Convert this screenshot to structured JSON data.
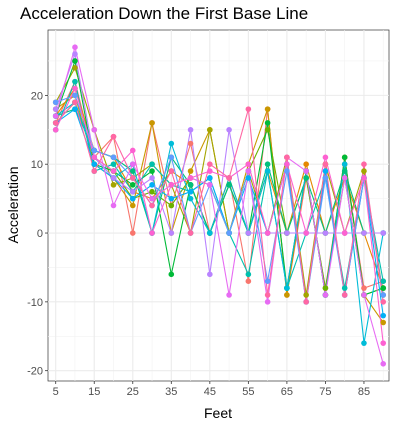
{
  "chart_data": {
    "type": "line",
    "title": "Acceleration Down the First Base Line",
    "xlabel": "Feet",
    "ylabel": "Acceleration",
    "xlim": [
      3,
      91.5
    ],
    "ylim": [
      -21.5,
      29.5
    ],
    "x_ticks": [
      5,
      15,
      25,
      35,
      45,
      55,
      65,
      75,
      85
    ],
    "y_ticks": [
      -20,
      -10,
      0,
      10,
      20
    ],
    "grid": true,
    "legend": "none",
    "colors": [
      "#F8766D",
      "#E58700",
      "#C99800",
      "#A3A500",
      "#6BB100",
      "#00BA38",
      "#00BF7D",
      "#00C0AF",
      "#00BCD8",
      "#00B0F6",
      "#619CFF",
      "#B983FF",
      "#E76BF3",
      "#FD61D1",
      "#FF67A4"
    ],
    "x": [
      5,
      10,
      15,
      20,
      25,
      30,
      35,
      40,
      45,
      50,
      55,
      60,
      65,
      70,
      75,
      80,
      85,
      90
    ],
    "series": [
      {
        "values": [
          16,
          22,
          11,
          14,
          0,
          16,
          4,
          13,
          0,
          8,
          -7,
          18,
          -9,
          8,
          -8,
          10,
          -8,
          -7
        ]
      },
      {
        "values": [
          17,
          21,
          12,
          11,
          6,
          5,
          9,
          7,
          0,
          8,
          0,
          9,
          0,
          10,
          0,
          8,
          0,
          -8
        ]
      },
      {
        "values": [
          18,
          20,
          10,
          8,
          4,
          16,
          0,
          9,
          15,
          0,
          10,
          18,
          -9,
          9,
          -9,
          11,
          -9,
          -13
        ]
      },
      {
        "values": [
          19,
          24,
          15,
          7,
          8,
          10,
          7,
          0,
          15,
          0,
          9,
          0,
          11,
          -9,
          10,
          0,
          9,
          -9
        ]
      },
      {
        "values": [
          16,
          19,
          11,
          9,
          5,
          6,
          4,
          8,
          7,
          0,
          9,
          15,
          0,
          8,
          -8,
          8,
          -9,
          -8
        ]
      },
      {
        "values": [
          17,
          25,
          10,
          9,
          7,
          9,
          -6,
          7,
          0,
          7,
          0,
          16,
          -8,
          9,
          -9,
          11,
          -9,
          -8
        ]
      },
      {
        "values": [
          17,
          18,
          12,
          11,
          9,
          0,
          11,
          7,
          0,
          7,
          0,
          10,
          0,
          8,
          0,
          9,
          0,
          0
        ]
      },
      {
        "values": [
          15,
          22,
          9,
          10,
          6,
          10,
          7,
          6,
          8,
          0,
          -6,
          9,
          -8,
          0,
          8,
          -8,
          8,
          -7
        ]
      },
      {
        "values": [
          17,
          19,
          11,
          8,
          10,
          0,
          13,
          5,
          0,
          8,
          0,
          9,
          -8,
          9,
          -9,
          10,
          -16,
          0
        ]
      },
      {
        "values": [
          16,
          18,
          10,
          8,
          5,
          7,
          5,
          6,
          8,
          0,
          8,
          0,
          10,
          -10,
          9,
          -9,
          8,
          -12
        ]
      },
      {
        "values": [
          19,
          20,
          12,
          11,
          8,
          4,
          11,
          0,
          7,
          0,
          9,
          -7,
          9,
          -10,
          8,
          -9,
          8,
          -9
        ]
      },
      {
        "values": [
          18,
          26,
          11,
          8,
          6,
          8,
          0,
          15,
          -6,
          15,
          0,
          0,
          0,
          0,
          0,
          0,
          0,
          0
        ]
      },
      {
        "values": [
          17,
          27,
          15,
          4,
          10,
          5,
          7,
          8,
          7,
          -9,
          9,
          -10,
          11,
          9,
          -9,
          8,
          -9,
          -19
        ]
      },
      {
        "values": [
          15,
          21,
          11,
          9,
          12,
          0,
          7,
          8,
          9,
          8,
          10,
          0,
          10,
          0,
          11,
          0,
          8,
          -16
        ]
      },
      {
        "values": [
          16,
          19,
          9,
          14,
          8,
          4,
          9,
          0,
          10,
          8,
          18,
          -9,
          11,
          -10,
          10,
          -9,
          10,
          -10
        ]
      }
    ]
  }
}
